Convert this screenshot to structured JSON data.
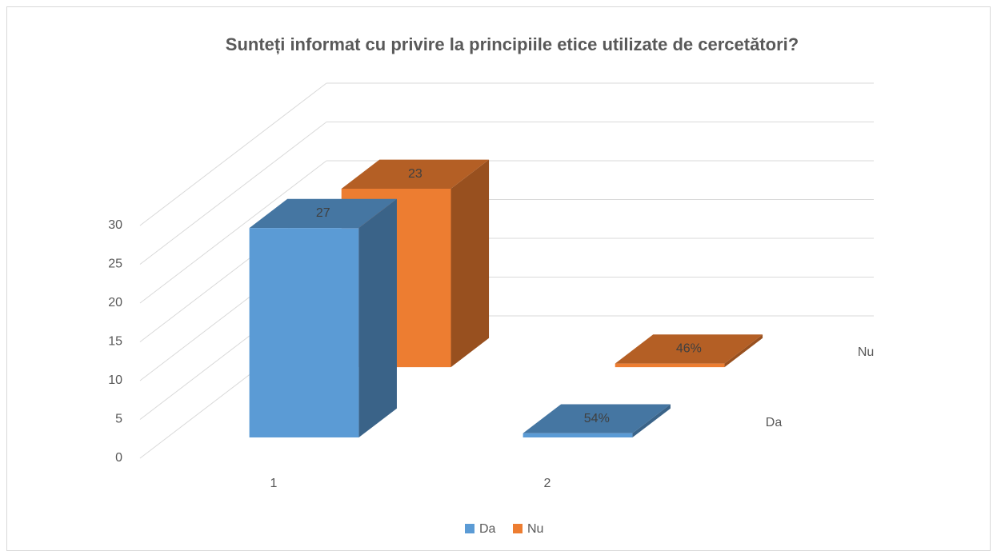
{
  "chart_data": {
    "type": "bar3d",
    "title": "Sunteți informat cu privire la principiile etice utilizate de cercetători?",
    "categories": [
      "1",
      "2"
    ],
    "series": [
      {
        "name": "Da",
        "color": "#5b9bd5",
        "values": [
          27,
          0.54
        ],
        "value_labels": [
          "27",
          "54%"
        ]
      },
      {
        "name": "Nu",
        "color": "#ed7d31",
        "values": [
          23,
          0.46
        ],
        "value_labels": [
          "23",
          "46%"
        ]
      }
    ],
    "ylim": [
      0,
      30
    ],
    "yticks": [
      0,
      5,
      10,
      15,
      20,
      25,
      30
    ],
    "grid": true,
    "legend": "bottom"
  }
}
